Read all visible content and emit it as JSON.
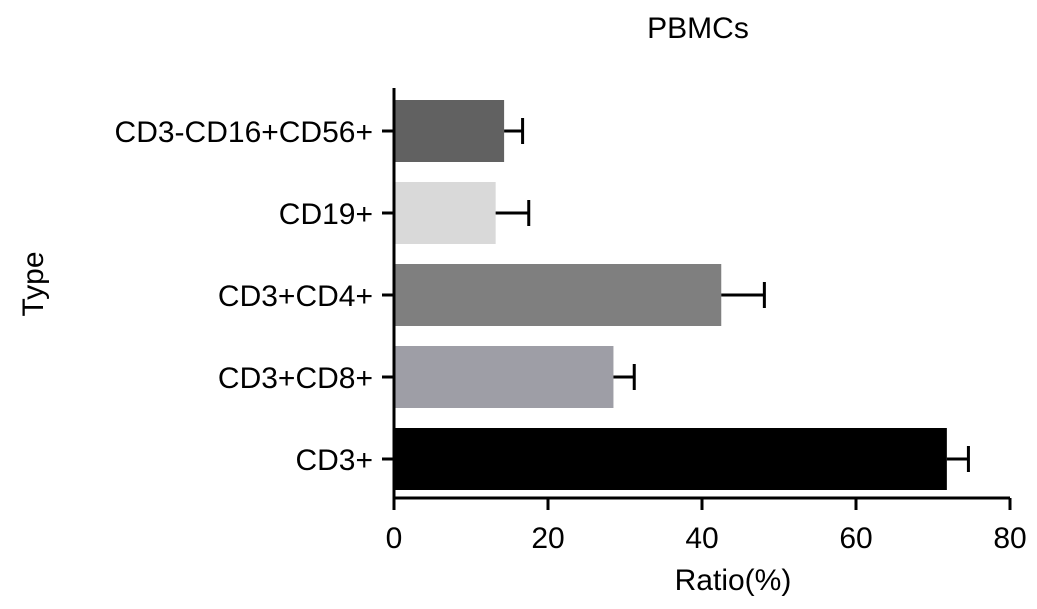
{
  "chart_data": {
    "type": "bar",
    "orientation": "horizontal",
    "title": "PBMCs",
    "xlabel": "Ratio(%)",
    "ylabel": "Type",
    "xlim": [
      0,
      80
    ],
    "xticks": [
      "0",
      "20",
      "40",
      "60",
      "80"
    ],
    "categories": [
      "CD3-CD16+CD56+",
      "CD19+",
      "CD3+CD4+",
      "CD3+CD8+",
      "CD3+"
    ],
    "values": [
      14.3,
      13.2,
      42.5,
      28.5,
      71.8
    ],
    "errors": [
      2.4,
      4.3,
      5.6,
      2.7,
      2.8
    ],
    "colors": [
      "#616161",
      "#d9d9d9",
      "#7f7f7f",
      "#9e9ea6",
      "#000000"
    ],
    "error_bars": "upper",
    "grid": false,
    "legend": "none"
  }
}
